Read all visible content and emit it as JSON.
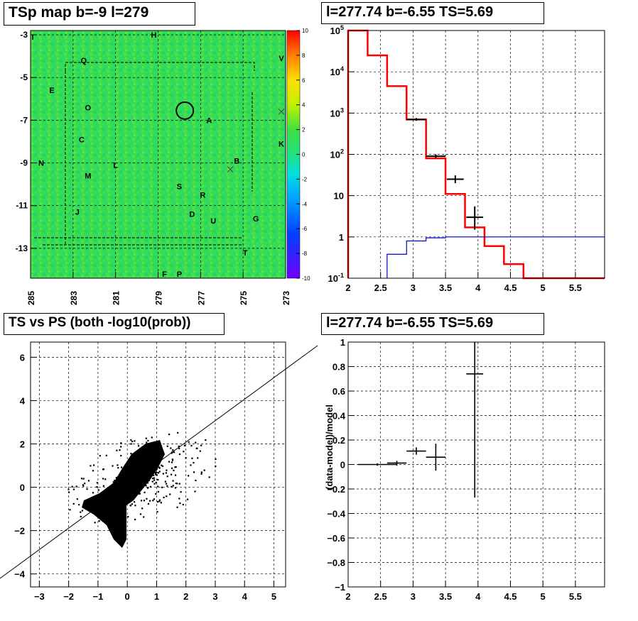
{
  "titles": {
    "p1": "TSp map b=-9 l=279",
    "p2": "l=277.74 b=-6.55 TS=5.69",
    "p3": "TS vs PS (both -log10(prob))",
    "p4": "l=277.74 b=-6.55 TS=5.69"
  },
  "chart_data": [
    {
      "type": "heatmap",
      "title": "TSp map b=-9 l=279",
      "x_ticks": [
        "285",
        "283",
        "281",
        "279",
        "277",
        "275",
        "273"
      ],
      "x_range": [
        285,
        273
      ],
      "y_ticks": [
        "-3",
        "-5",
        "-7",
        "-9",
        "-11",
        "-13"
      ],
      "y_range": [
        -14.4,
        -2.8
      ],
      "colorbar": {
        "range": [
          -10,
          10
        ],
        "ticks": [
          "10",
          "8",
          "6",
          "4",
          "2",
          "0",
          "-2",
          "-4",
          "-6",
          "-8",
          "-10"
        ]
      },
      "source_labels": [
        {
          "t": "I",
          "l": 284.9,
          "b": -3.1
        },
        {
          "t": "H",
          "l": 279.2,
          "b": -3.0
        },
        {
          "t": "V",
          "l": 273.2,
          "b": -4.1
        },
        {
          "t": "Q",
          "l": 282.5,
          "b": -4.2
        },
        {
          "t": "E",
          "l": 284.0,
          "b": -5.6
        },
        {
          "t": "O",
          "l": 282.3,
          "b": -6.4
        },
        {
          "t": "A",
          "l": 276.6,
          "b": -7.0
        },
        {
          "t": "K",
          "l": 273.2,
          "b": -8.1
        },
        {
          "t": "C",
          "l": 282.6,
          "b": -7.9
        },
        {
          "t": "B",
          "l": 275.3,
          "b": -8.9
        },
        {
          "t": "N",
          "l": 284.5,
          "b": -9.0
        },
        {
          "t": "L",
          "l": 281.0,
          "b": -9.1
        },
        {
          "t": "M",
          "l": 282.3,
          "b": -9.6
        },
        {
          "t": "S",
          "l": 278.0,
          "b": -10.1
        },
        {
          "t": "R",
          "l": 276.9,
          "b": -10.5
        },
        {
          "t": "J",
          "l": 282.8,
          "b": -11.3
        },
        {
          "t": "D",
          "l": 277.4,
          "b": -11.4
        },
        {
          "t": "U",
          "l": 276.4,
          "b": -11.7
        },
        {
          "t": "G",
          "l": 274.4,
          "b": -11.6
        },
        {
          "t": "T",
          "l": 274.9,
          "b": -13.2
        },
        {
          "t": "F",
          "l": 278.7,
          "b": -14.2
        },
        {
          "t": "P",
          "l": 278.0,
          "b": -14.2
        }
      ],
      "circle": {
        "l": 277.74,
        "b": -6.55
      },
      "crosses": [
        {
          "l": 275.6,
          "b": -9.3
        },
        {
          "l": 273.2,
          "b": -6.6
        }
      ]
    },
    {
      "type": "line",
      "title": "l=277.74 b=-6.55 TS=5.69",
      "x_ticks": [
        "2",
        "2.5",
        "3",
        "3.5",
        "4",
        "4.5",
        "5",
        "5.5"
      ],
      "xlim": [
        2,
        5.95
      ],
      "y_log": true,
      "y_ticks": [
        "10^5",
        "10^4",
        "10^3",
        "10^2",
        "10",
        "1",
        "10^-1"
      ],
      "ylim": [
        0.1,
        100000
      ],
      "series": [
        {
          "color": "#ff0000",
          "edges": [
            2.0,
            2.3,
            2.6,
            2.9,
            3.2,
            3.5,
            3.8,
            4.1,
            4.4,
            4.7,
            5.0,
            5.95
          ],
          "values": [
            100000,
            25000,
            4500,
            700,
            80,
            11,
            1.7,
            0.6,
            0.22,
            0.1,
            0.1
          ]
        },
        {
          "color": "#0000cc",
          "edges": [
            2.6,
            2.9,
            3.2,
            3.5,
            3.8,
            4.1,
            4.4,
            4.7,
            5.0,
            5.95
          ],
          "values": [
            0.38,
            0.8,
            0.95,
            1.0,
            1.0,
            1.0,
            1.0,
            1.0,
            1.0
          ]
        }
      ],
      "points": [
        {
          "x": 3.05,
          "xe": 0.15,
          "y": 700,
          "ylo": 650,
          "yhi": 760
        },
        {
          "x": 3.35,
          "xe": 0.15,
          "y": 90,
          "ylo": 80,
          "yhi": 100
        },
        {
          "x": 3.65,
          "xe": 0.13,
          "y": 25,
          "ylo": 20,
          "yhi": 31
        },
        {
          "x": 3.95,
          "xe": 0.13,
          "y": 3,
          "ylo": 1.5,
          "yhi": 5.5
        }
      ]
    },
    {
      "type": "scatter",
      "title": "TS vs PS (both -log10(prob))",
      "x_ticks": [
        "-3",
        "-2",
        "-1",
        "0",
        "1",
        "2",
        "3",
        "4",
        "5"
      ],
      "xlim": [
        -3.3,
        5.4
      ],
      "y_ticks": [
        "6",
        "4",
        "2",
        "0",
        "-2",
        "-4"
      ],
      "ylim": [
        -4.6,
        6.7
      ],
      "fit_line": [
        [
          -3.5,
          -4.0
        ],
        [
          6.6,
          6.6
        ]
      ]
    },
    {
      "type": "scatter",
      "title": "l=277.74 b=-6.55 TS=5.69",
      "ylabel": "(data-model)/model",
      "x_ticks": [
        "2",
        "2.5",
        "3",
        "3.5",
        "4",
        "4.5",
        "5",
        "5.5"
      ],
      "xlim": [
        2,
        5.95
      ],
      "y_ticks": [
        "1",
        "0.8",
        "0.6",
        "0.4",
        "0.2",
        "0",
        "-0.2",
        "-0.4",
        "-0.6",
        "-0.8",
        "-1"
      ],
      "ylim": [
        -1,
        1
      ],
      "points": [
        {
          "x": 2.45,
          "xe": 0.3,
          "y": 0.0,
          "ylo": -0.01,
          "yhi": 0.01
        },
        {
          "x": 2.75,
          "xe": 0.15,
          "y": 0.012,
          "ylo": -0.01,
          "yhi": 0.03
        },
        {
          "x": 3.05,
          "xe": 0.15,
          "y": 0.11,
          "ylo": 0.08,
          "yhi": 0.14
        },
        {
          "x": 3.35,
          "xe": 0.15,
          "y": 0.06,
          "ylo": -0.05,
          "yhi": 0.17
        },
        {
          "x": 3.95,
          "xe": 0.13,
          "y": 0.74,
          "ylo": -0.27,
          "yhi": 1.0
        }
      ]
    }
  ]
}
